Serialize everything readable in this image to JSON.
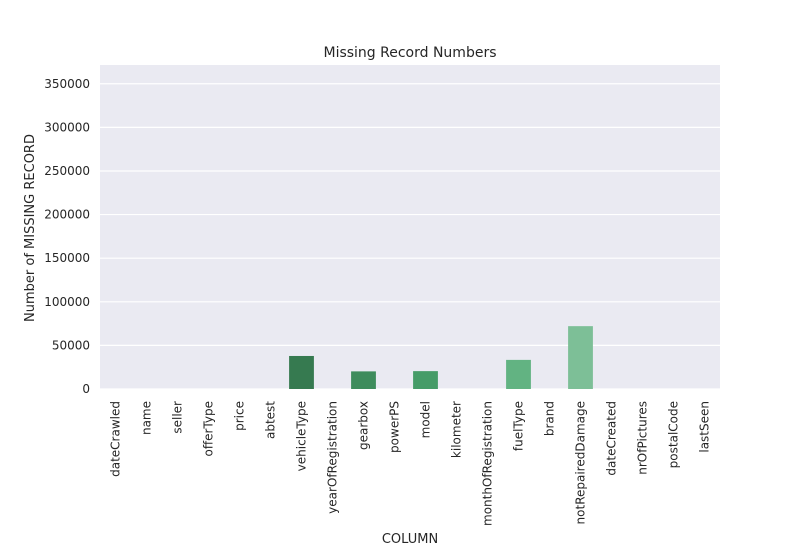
{
  "chart_data": {
    "type": "bar",
    "title": "Missing Record Numbers",
    "xlabel": "COLUMN",
    "ylabel": "Number of MISSING RECORD",
    "categories": [
      "dateCrawled",
      "name",
      "seller",
      "offerType",
      "price",
      "abtest",
      "vehicleType",
      "yearOfRegistration",
      "gearbox",
      "powerPS",
      "model",
      "kilometer",
      "monthOfRegistration",
      "fuelType",
      "brand",
      "notRepairedDamage",
      "dateCreated",
      "nrOfPictures",
      "postalCode",
      "lastSeen"
    ],
    "values": [
      0,
      0,
      0,
      0,
      0,
      0,
      37869,
      0,
      20209,
      0,
      20484,
      0,
      0,
      33386,
      0,
      72060,
      0,
      0,
      0,
      0
    ],
    "yticks": [
      0,
      50000,
      100000,
      150000,
      200000,
      250000,
      300000,
      350000
    ],
    "ylim": [
      0,
      371528
    ],
    "grid": true,
    "background": "#eaeaf2",
    "gridColor": "#ffffff",
    "barColors": [
      "#1b4d2e",
      "#1f5533",
      "#235c38",
      "#27643d",
      "#2b6c42",
      "#2f7447",
      "#367a50",
      "#3a8456",
      "#3e8c5c",
      "#429462",
      "#469c68",
      "#4aa46e",
      "#53ab76",
      "#62b382",
      "#70b98d",
      "#7dbf97",
      "#8ac6a1",
      "#97ccab",
      "#a4d3b5",
      "#b1d9bf"
    ]
  }
}
